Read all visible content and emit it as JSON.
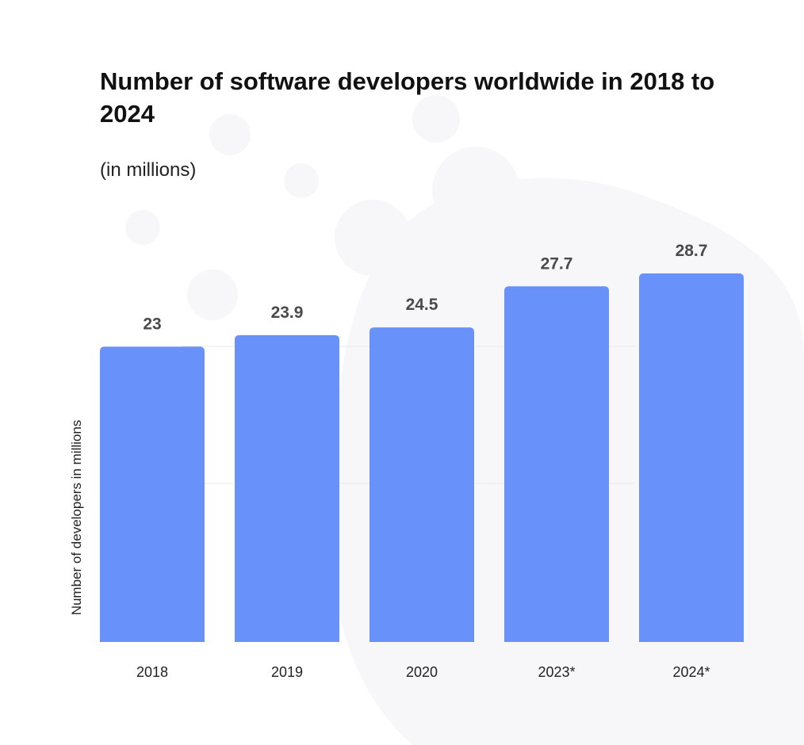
{
  "colors": {
    "bar": "#6892f9",
    "background": "#ffffff",
    "decor": "#f7f7f9",
    "grid": "#e8e8ec"
  },
  "chart_data": {
    "type": "bar",
    "title": "Number of software developers worldwide in 2018 to 2024",
    "subtitle": "(in millions)",
    "xlabel": "",
    "ylabel": "Number of developers in millions",
    "categories": [
      "2018",
      "2019",
      "2020",
      "2023*",
      "2024*"
    ],
    "values": [
      23,
      23.9,
      24.5,
      27.7,
      28.7
    ],
    "value_labels": [
      "23",
      "23.9",
      "24.5",
      "27.7",
      "28.7"
    ],
    "ylim": [
      0,
      30
    ],
    "grid": true,
    "legend": "none"
  }
}
